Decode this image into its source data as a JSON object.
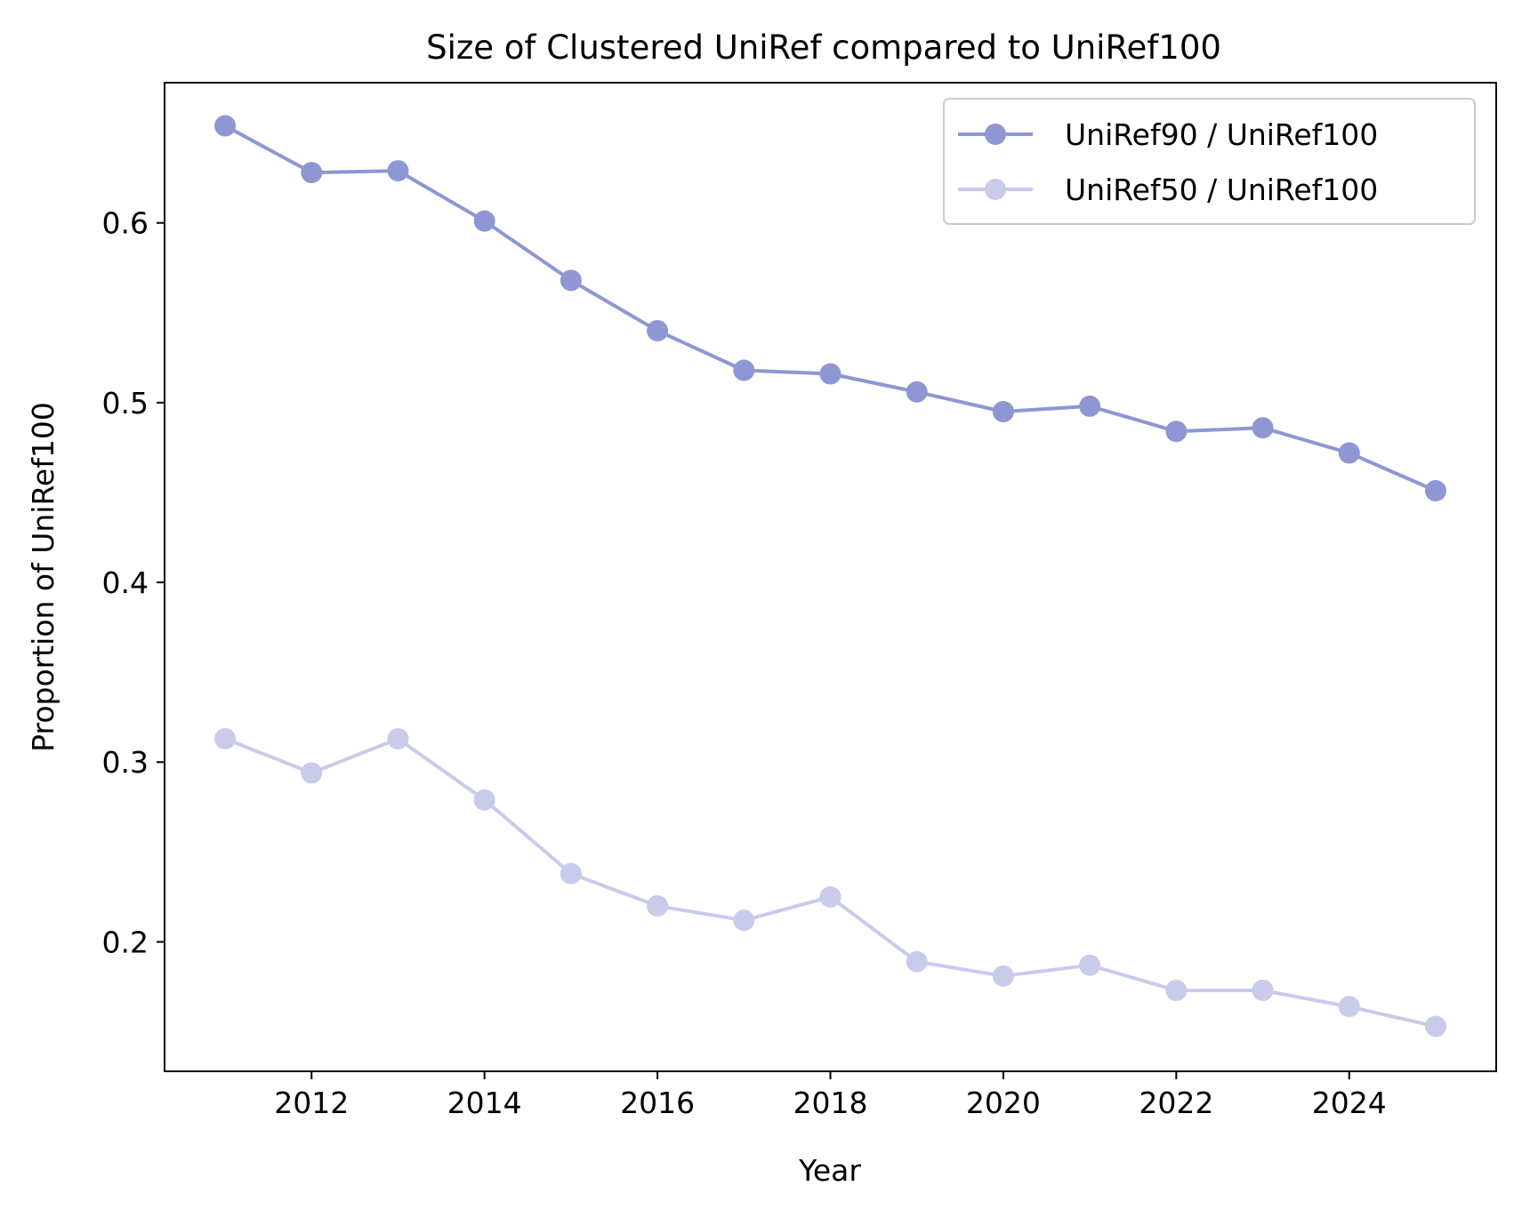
{
  "chart_data": {
    "type": "line",
    "title": "Size of Clustered UniRef compared to UniRef100",
    "xlabel": "Year",
    "ylabel": "Proportion of UniRef100",
    "x": [
      2011,
      2012,
      2013,
      2014,
      2015,
      2016,
      2017,
      2018,
      2019,
      2020,
      2021,
      2022,
      2023,
      2024,
      2025
    ],
    "xlim": [
      2010.3,
      2025.7
    ],
    "ylim": [
      0.128,
      0.678
    ],
    "xticks": [
      2012,
      2014,
      2016,
      2018,
      2020,
      2022,
      2024
    ],
    "xtick_labels": [
      "2012",
      "2014",
      "2016",
      "2018",
      "2020",
      "2022",
      "2024"
    ],
    "yticks": [
      0.2,
      0.3,
      0.4,
      0.5,
      0.6
    ],
    "ytick_labels": [
      "0.2",
      "0.3",
      "0.4",
      "0.5",
      "0.6"
    ],
    "grid": false,
    "legend_position": "top-right",
    "series": [
      {
        "name": "UniRef90 / UniRef100",
        "color": "#8e96d3",
        "values": [
          0.654,
          0.628,
          0.629,
          0.601,
          0.568,
          0.54,
          0.518,
          0.516,
          0.506,
          0.495,
          0.498,
          0.484,
          0.486,
          0.472,
          0.451
        ]
      },
      {
        "name": "UniRef50 / UniRef100",
        "color": "#c8cbea",
        "values": [
          0.313,
          0.294,
          0.313,
          0.279,
          0.238,
          0.22,
          0.212,
          0.225,
          0.189,
          0.181,
          0.187,
          0.173,
          0.173,
          0.164,
          0.153
        ]
      }
    ]
  }
}
